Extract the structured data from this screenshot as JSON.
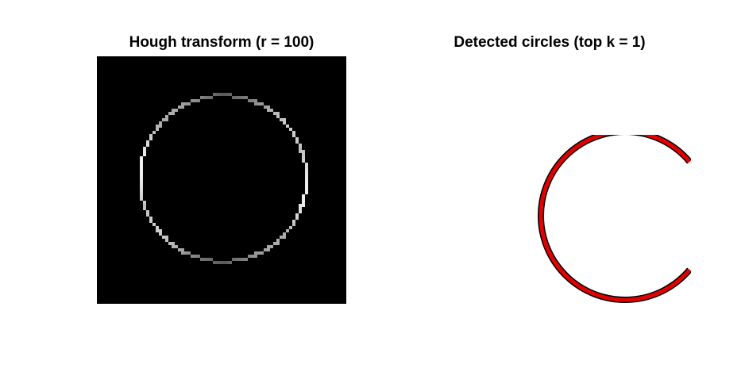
{
  "left_panel": {
    "title": "Hough transform (r = 100)",
    "background_color": "#000000",
    "ring_color": "#ffffff"
  },
  "right_panel": {
    "title": "Detected circles (top k = 1)",
    "arc_fill_color": "#e00000",
    "arc_edge_color": "#000000"
  }
}
